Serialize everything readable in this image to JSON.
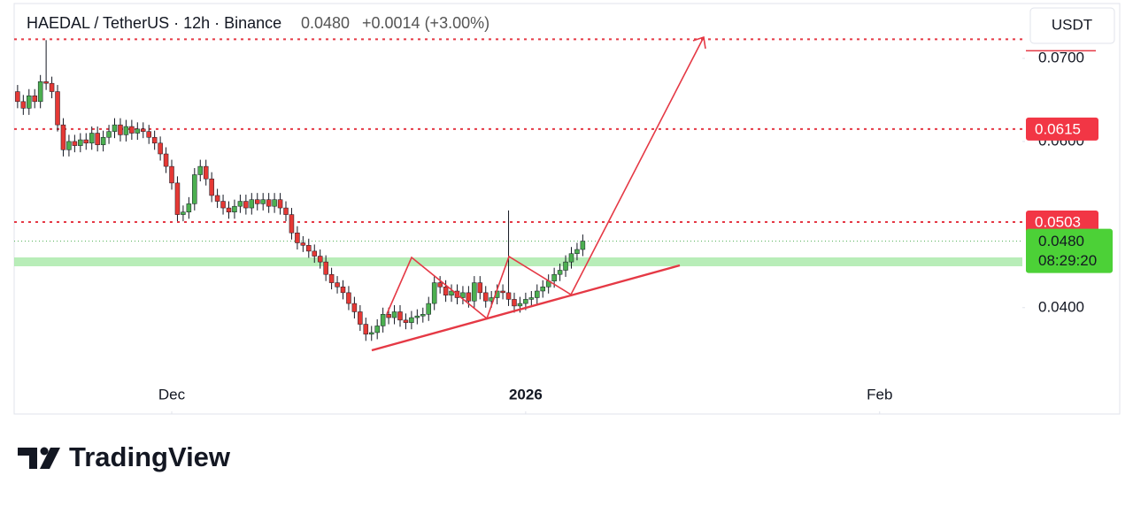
{
  "chart_data": {
    "type": "candlestick",
    "symbol": "HAEDAL / TetherUS · 12h · Binance",
    "price": "0.0480",
    "change": "+0.0014 (+3.00%)",
    "currency": "USDT",
    "countdown": "08:29:20",
    "brand": "TradingView",
    "up_color": "#4caf50",
    "down_color": "#e53935",
    "open": [
      0.066,
      0.0648,
      0.064,
      0.0655,
      0.0648,
      0.0672,
      0.067,
      0.066,
      0.062,
      0.059,
      0.06,
      0.0595,
      0.0602,
      0.0598,
      0.061,
      0.0596,
      0.0605,
      0.0612,
      0.062,
      0.0608,
      0.0618,
      0.061,
      0.0615,
      0.0612,
      0.0605,
      0.0598,
      0.0585,
      0.057,
      0.055,
      0.0512,
      0.0515,
      0.0525,
      0.056,
      0.057,
      0.0555,
      0.0535,
      0.0528,
      0.052,
      0.0515,
      0.0522,
      0.0528,
      0.052,
      0.053,
      0.0525,
      0.053,
      0.0522,
      0.053,
      0.052,
      0.0512,
      0.049,
      0.0478,
      0.0475,
      0.0468,
      0.0462,
      0.0455,
      0.044,
      0.043,
      0.0425,
      0.0418,
      0.0405,
      0.0395,
      0.038,
      0.0368,
      0.037,
      0.0378,
      0.0392,
      0.0388,
      0.0395,
      0.0385,
      0.0382,
      0.0388,
      0.039,
      0.0392,
      0.0405,
      0.043,
      0.0425,
      0.0415,
      0.042,
      0.0412,
      0.0418,
      0.0408,
      0.043,
      0.0418,
      0.0408,
      0.0412,
      0.042,
      0.0418,
      0.041,
      0.0402,
      0.0405,
      0.041,
      0.0412,
      0.042,
      0.0425,
      0.0432,
      0.044,
      0.0445,
      0.0455,
      0.0465,
      0.047
    ],
    "high": [
      0.0668,
      0.0656,
      0.0663,
      0.0663,
      0.068,
      0.0722,
      0.0678,
      0.0668,
      0.0628,
      0.0608,
      0.0608,
      0.061,
      0.061,
      0.0618,
      0.0618,
      0.0613,
      0.062,
      0.0628,
      0.0628,
      0.0626,
      0.0626,
      0.0623,
      0.0623,
      0.062,
      0.0613,
      0.0606,
      0.0593,
      0.0578,
      0.0558,
      0.0523,
      0.0533,
      0.0568,
      0.0578,
      0.0578,
      0.0563,
      0.0543,
      0.0536,
      0.0528,
      0.053,
      0.0536,
      0.0536,
      0.0538,
      0.0538,
      0.0538,
      0.0538,
      0.0538,
      0.0538,
      0.0528,
      0.052,
      0.0498,
      0.0486,
      0.0483,
      0.0476,
      0.047,
      0.0463,
      0.0448,
      0.0438,
      0.0433,
      0.0426,
      0.0413,
      0.0403,
      0.0388,
      0.0378,
      0.0386,
      0.04,
      0.04,
      0.0403,
      0.0403,
      0.0393,
      0.0396,
      0.0398,
      0.04,
      0.0413,
      0.0438,
      0.0438,
      0.0433,
      0.0428,
      0.0428,
      0.0426,
      0.0426,
      0.0438,
      0.0438,
      0.0426,
      0.042,
      0.0428,
      0.0428,
      0.0517,
      0.0418,
      0.0413,
      0.0418,
      0.042,
      0.0428,
      0.0433,
      0.044,
      0.0448,
      0.0453,
      0.0463,
      0.0473,
      0.0478,
      0.0488
    ],
    "low": [
      0.064,
      0.0632,
      0.0632,
      0.064,
      0.064,
      0.0662,
      0.0652,
      0.0612,
      0.0582,
      0.0582,
      0.0587,
      0.0587,
      0.059,
      0.059,
      0.0588,
      0.0588,
      0.0597,
      0.0604,
      0.06,
      0.06,
      0.0602,
      0.0602,
      0.0604,
      0.0597,
      0.059,
      0.0577,
      0.0562,
      0.0542,
      0.0504,
      0.0504,
      0.0507,
      0.0517,
      0.0552,
      0.0547,
      0.0527,
      0.052,
      0.0512,
      0.0507,
      0.0507,
      0.0514,
      0.0512,
      0.0512,
      0.0517,
      0.0517,
      0.0514,
      0.0514,
      0.0512,
      0.0504,
      0.0482,
      0.047,
      0.0467,
      0.046,
      0.0454,
      0.0447,
      0.0432,
      0.0422,
      0.0417,
      0.041,
      0.0397,
      0.0387,
      0.0372,
      0.036,
      0.036,
      0.0362,
      0.037,
      0.038,
      0.038,
      0.0377,
      0.0374,
      0.0374,
      0.038,
      0.0382,
      0.0384,
      0.0397,
      0.0417,
      0.0407,
      0.0407,
      0.0404,
      0.0404,
      0.04,
      0.04,
      0.041,
      0.04,
      0.04,
      0.0404,
      0.041,
      0.0402,
      0.0394,
      0.0394,
      0.0397,
      0.0402,
      0.0404,
      0.0412,
      0.0417,
      0.0424,
      0.0432,
      0.0437,
      0.0447,
      0.0457,
      0.0462
    ],
    "close": [
      0.0648,
      0.064,
      0.0655,
      0.0648,
      0.0672,
      0.067,
      0.066,
      0.062,
      0.059,
      0.06,
      0.0595,
      0.0602,
      0.0598,
      0.061,
      0.0596,
      0.0605,
      0.0612,
      0.062,
      0.0608,
      0.0618,
      0.061,
      0.0615,
      0.0612,
      0.0605,
      0.0598,
      0.0585,
      0.057,
      0.055,
      0.0512,
      0.0515,
      0.0525,
      0.056,
      0.057,
      0.0555,
      0.0535,
      0.0528,
      0.052,
      0.0515,
      0.0522,
      0.0528,
      0.052,
      0.053,
      0.0525,
      0.053,
      0.0522,
      0.053,
      0.052,
      0.0512,
      0.049,
      0.0478,
      0.0475,
      0.0468,
      0.0462,
      0.0455,
      0.044,
      0.043,
      0.0425,
      0.0418,
      0.0405,
      0.0395,
      0.038,
      0.0368,
      0.037,
      0.0378,
      0.0392,
      0.0388,
      0.0395,
      0.0385,
      0.0382,
      0.0388,
      0.039,
      0.0392,
      0.0405,
      0.043,
      0.0425,
      0.0415,
      0.042,
      0.0412,
      0.0418,
      0.0408,
      0.043,
      0.0418,
      0.0408,
      0.0412,
      0.042,
      0.0418,
      0.041,
      0.0402,
      0.0405,
      0.041,
      0.0412,
      0.042,
      0.0425,
      0.0432,
      0.044,
      0.0445,
      0.0455,
      0.0465,
      0.047,
      0.048
    ],
    "current_price": 0.048,
    "resistance_lines": [
      0.0723,
      0.0615,
      0.0503
    ],
    "xlim": [
      -0.6,
      176
    ],
    "ylim": [
      0.0272,
      0.0766
    ],
    "xticks": [
      {
        "value": 27,
        "label": "Dec"
      },
      {
        "value": 89,
        "label": "2026"
      },
      {
        "value": 151,
        "label": "Feb"
      }
    ],
    "yticks": [
      {
        "value": 0.04,
        "label": "0.0400"
      },
      {
        "value": 0.06,
        "label": "0.0600"
      },
      {
        "value": 0.07,
        "label": "0.0700"
      }
    ]
  }
}
